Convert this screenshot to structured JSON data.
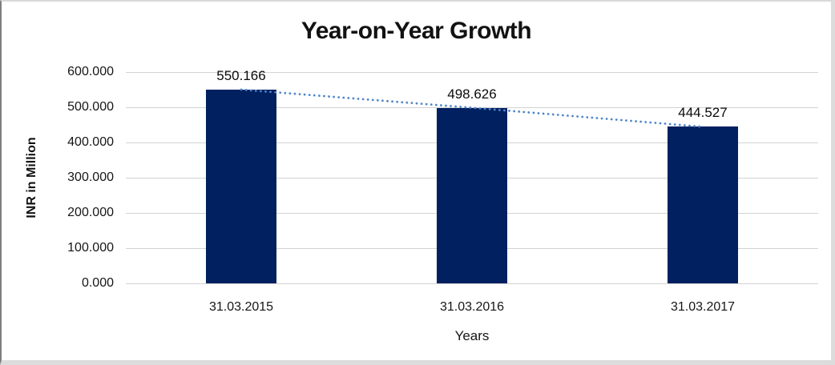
{
  "chart_data": {
    "type": "bar",
    "title": "Year-on-Year Growth",
    "categories": [
      "31.03.2015",
      "31.03.2016",
      "31.03.2017"
    ],
    "values": [
      550.166,
      498.626,
      444.527
    ],
    "data_labels": [
      "550.166",
      "498.626",
      "444.527"
    ],
    "xlabel": "Years",
    "ylabel": "INR in Million",
    "ylim": [
      0,
      600
    ],
    "ytick_step": 100,
    "ytick_labels": [
      "0.000",
      "100.000",
      "200.000",
      "300.000",
      "400.000",
      "500.000",
      "600.000"
    ],
    "grid": true,
    "legend": "none",
    "bar_color": "#002060",
    "gridline_color": "#d2d2d2",
    "trendline": {
      "style": "dotted",
      "color": "#4f87c9"
    }
  }
}
